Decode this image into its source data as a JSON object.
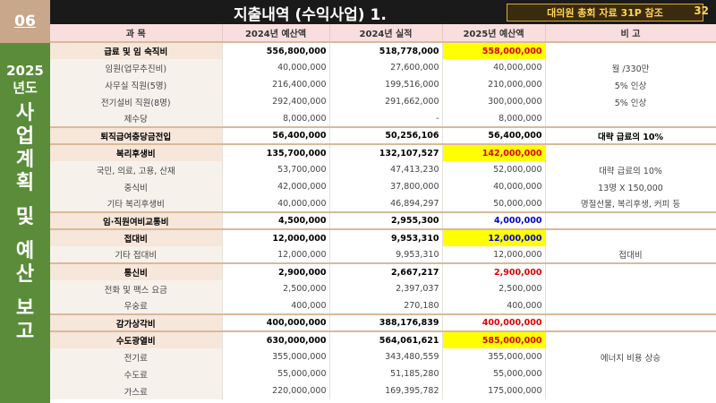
{
  "page": {
    "section_number": "06",
    "sidebar_year": "2025",
    "sidebar_suffix": "년도",
    "sidebar_chars": [
      "사",
      "업",
      "계",
      "획",
      "",
      "및",
      "",
      "예",
      "산",
      "",
      "보",
      "고"
    ],
    "title": "지출내역 (수익사업)  1.",
    "reference": "대의원 총회 자료 31P 참조",
    "page_number": "32"
  },
  "table": {
    "headers": [
      "과  목",
      "2024년 예산액",
      "2024년 실적",
      "2025년 예산액",
      "비          고"
    ],
    "rows": [
      {
        "kind": "cat",
        "label": "급료 및 임 숙직비",
        "b2024": "556,800,000",
        "a2024": "518,778,000",
        "b2025": "558,000,000",
        "note": "",
        "style": "red-yellow"
      },
      {
        "kind": "sub",
        "label": "임원(업무추진비)",
        "b2024": "40,000,000",
        "a2024": "27,600,000",
        "b2025": "40,000,000",
        "note": "월 /330만",
        "style": ""
      },
      {
        "kind": "sub",
        "label": "사무실 직원(5명)",
        "b2024": "216,400,000",
        "a2024": "199,516,000",
        "b2025": "210,000,000",
        "note": "5% 인상",
        "style": ""
      },
      {
        "kind": "sub",
        "label": "전기설비 직원(8명)",
        "b2024": "292,400,000",
        "a2024": "291,662,000",
        "b2025": "300,000,000",
        "note": "5% 인상",
        "style": ""
      },
      {
        "kind": "sub",
        "label": "제수당",
        "b2024": "8,000,000",
        "a2024": "-",
        "b2025": "8,000,000",
        "note": "",
        "style": ""
      },
      {
        "kind": "cat",
        "label": "퇴직급여충당금전입",
        "b2024": "56,400,000",
        "a2024": "50,256,106",
        "b2025": "56,400,000",
        "note": "대략 급료의 10%",
        "style": "plain"
      },
      {
        "kind": "cat",
        "label": "복리후생비",
        "b2024": "135,700,000",
        "a2024": "132,107,527",
        "b2025": "142,000,000",
        "note": "",
        "style": "red-yellow"
      },
      {
        "kind": "sub",
        "label": "국민, 의료, 고용, 산재",
        "b2024": "53,700,000",
        "a2024": "47,413,230",
        "b2025": "52,000,000",
        "note": "대략 급료의 10%",
        "style": ""
      },
      {
        "kind": "sub",
        "label": "중식비",
        "b2024": "42,000,000",
        "a2024": "37,800,000",
        "b2025": "40,000,000",
        "note": "13명 X 150,000",
        "style": ""
      },
      {
        "kind": "sub",
        "label": "기타 복리후생비",
        "b2024": "40,000,000",
        "a2024": "46,894,297",
        "b2025": "50,000,000",
        "note": "명절선물, 복리후생, 커피 등",
        "style": ""
      },
      {
        "kind": "cat",
        "label": "임·직원여비교통비",
        "b2024": "4,500,000",
        "a2024": "2,955,300",
        "b2025": "4,000,000",
        "note": "",
        "style": "blue"
      },
      {
        "kind": "cat",
        "label": "접대비",
        "b2024": "12,000,000",
        "a2024": "9,953,310",
        "b2025": "12,000,000",
        "note": "",
        "style": "blue-yellow"
      },
      {
        "kind": "sub",
        "label": "기타 접대비",
        "b2024": "12,000,000",
        "a2024": "9,953,310",
        "b2025": "12,000,000",
        "note": "접대비",
        "style": ""
      },
      {
        "kind": "cat",
        "label": "통신비",
        "b2024": "2,900,000",
        "a2024": "2,667,217",
        "b2025": "2,900,000",
        "note": "",
        "style": "red"
      },
      {
        "kind": "sub",
        "label": "전화 및 팩스 요금",
        "b2024": "2,500,000",
        "a2024": "2,397,037",
        "b2025": "2,500,000",
        "note": "",
        "style": ""
      },
      {
        "kind": "sub",
        "label": "우숭료",
        "b2024": "400,000",
        "a2024": "270,180",
        "b2025": "400,000",
        "note": "",
        "style": ""
      },
      {
        "kind": "cat",
        "label": "감가상각비",
        "b2024": "400,000,000",
        "a2024": "388,176,839",
        "b2025": "400,000,000",
        "note": "",
        "style": "red"
      },
      {
        "kind": "cat",
        "label": "수도광열비",
        "b2024": "630,000,000",
        "a2024": "564,061,621",
        "b2025": "585,000,000",
        "note": "",
        "style": "red-yellow"
      },
      {
        "kind": "sub",
        "label": "전기료",
        "b2024": "355,000,000",
        "a2024": "343,480,559",
        "b2025": "355,000,000",
        "note": "에너지 비용 상승",
        "style": ""
      },
      {
        "kind": "sub",
        "label": "수도료",
        "b2024": "55,000,000",
        "a2024": "51,185,280",
        "b2025": "55,000,000",
        "note": "",
        "style": ""
      },
      {
        "kind": "sub",
        "label": "가스료",
        "b2024": "220,000,000",
        "a2024": "169,395,782",
        "b2025": "175,000,000",
        "note": "",
        "style": ""
      }
    ]
  },
  "colors": {
    "sidebar": "#5a8c3a",
    "section_tab": "#c9a78a",
    "header_bg": "#1a1a1a",
    "highlight": "#ffff00",
    "red": "#e00000",
    "blue": "#0000cc"
  }
}
